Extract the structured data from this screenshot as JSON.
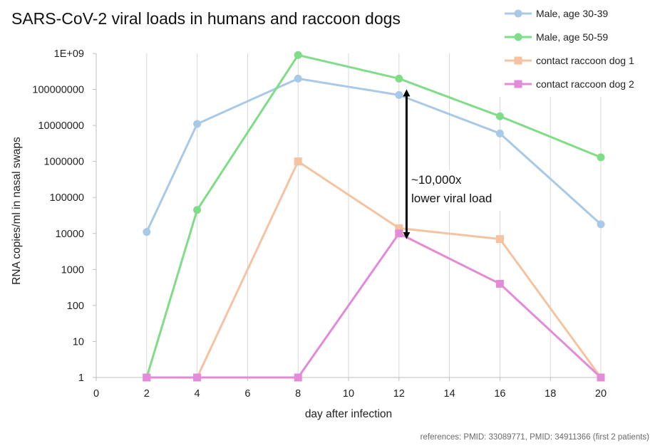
{
  "chart_data": {
    "type": "line",
    "title": "SARS-CoV-2 viral loads in humans and raccoon dogs",
    "xlabel": "day after infection",
    "ylabel": "RNA copies/ml in nasal swaps",
    "xlim": [
      0,
      20
    ],
    "ylim": [
      1,
      1000000000
    ],
    "yscale": "log",
    "grid": "vertical",
    "legend_position": "top-right",
    "x_ticks": [
      "0",
      "2",
      "4",
      "6",
      "8",
      "10",
      "12",
      "14",
      "16",
      "18",
      "20"
    ],
    "y_ticks": [
      "1",
      "10",
      "100",
      "1000",
      "10000",
      "100000",
      "1000000",
      "10000000",
      "100000000",
      "1E+09"
    ],
    "series": [
      {
        "name": "Male, age 30-39",
        "color": "#a9c9e8",
        "marker": "circle",
        "points": [
          [
            2,
            11000
          ],
          [
            4,
            11000000
          ],
          [
            8,
            200000000
          ],
          [
            12,
            70000000
          ],
          [
            16,
            6000000
          ],
          [
            20,
            18000
          ]
        ]
      },
      {
        "name": "Male, age 50-59",
        "color": "#7edd86",
        "marker": "circle",
        "points": [
          [
            2,
            1
          ],
          [
            4,
            45000
          ],
          [
            8,
            900000000
          ],
          [
            12,
            200000000
          ],
          [
            16,
            18000000
          ],
          [
            20,
            1300000
          ]
        ]
      },
      {
        "name": "contact raccoon dog 1",
        "color": "#f5c3a2",
        "marker": "square",
        "points": [
          [
            2,
            1
          ],
          [
            4,
            1
          ],
          [
            8,
            1000000
          ],
          [
            12,
            14000
          ],
          [
            16,
            7000
          ],
          [
            20,
            1
          ]
        ]
      },
      {
        "name": "contact raccoon dog 2",
        "color": "#e38ad8",
        "marker": "square",
        "points": [
          [
            2,
            1
          ],
          [
            4,
            1
          ],
          [
            8,
            1
          ],
          [
            12,
            10000
          ],
          [
            16,
            400
          ],
          [
            20,
            1
          ]
        ]
      }
    ],
    "annotation": {
      "lines": [
        "~10,000x",
        "lower viral load"
      ],
      "arrow_x": 12.3,
      "arrow_from": 10000,
      "arrow_to": 70000000
    },
    "footnote": "references: PMID: 33089771, PMID: 34911366 (first 2 patients)"
  }
}
